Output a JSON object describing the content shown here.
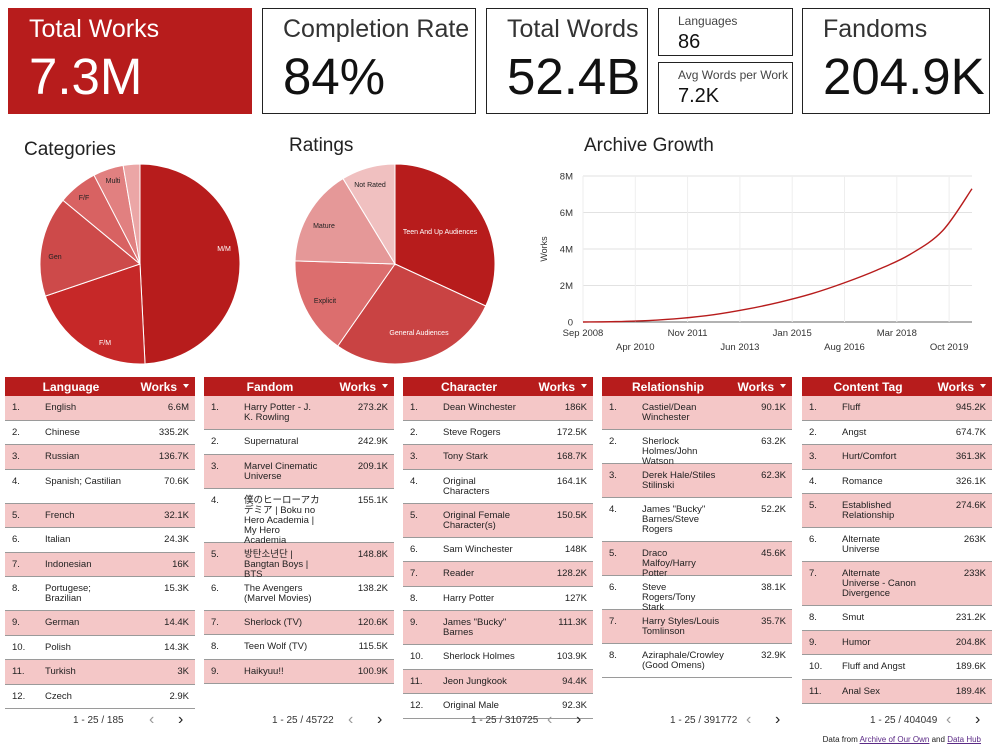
{
  "scorecards": {
    "total_works": {
      "label": "Total Works",
      "value": "7.3M"
    },
    "completion_rate": {
      "label": "Completion Rate",
      "value": "84%"
    },
    "total_words": {
      "label": "Total Words",
      "value": "52.4B"
    },
    "languages": {
      "label": "Languages",
      "value": "86"
    },
    "avg_words": {
      "label": "Avg Words per Work",
      "value": "7.2K"
    },
    "fandoms": {
      "label": "Fandoms",
      "value": "204.9K"
    }
  },
  "colors": {
    "accent": "#b71c1c",
    "row_alt": "#f4c7c7",
    "line": "#b71c1c"
  },
  "chart_data": [
    {
      "type": "pie",
      "title": "Categories",
      "labels": [
        "M/M",
        "F/M",
        "Gen",
        "F/F",
        "Multi",
        ""
      ],
      "values": [
        49.2,
        20.6,
        16.2,
        6.4,
        4.9,
        2.7
      ],
      "colors": [
        "#b71c1c",
        "#c62828",
        "#cd4a4a",
        "#d86262",
        "#e18080",
        "#eba6a6"
      ]
    },
    {
      "type": "pie",
      "title": "Ratings",
      "labels": [
        "Teen And Up Audiences",
        "General Audiences",
        "Explicit",
        "Mature",
        "Not Rated"
      ],
      "values": [
        31.9,
        27.8,
        15.8,
        15.8,
        8.7
      ],
      "colors": [
        "#b71c1c",
        "#c94343",
        "#dc6e6e",
        "#e59898",
        "#f0c0c0"
      ]
    },
    {
      "type": "line",
      "title": "Archive Growth",
      "ylabel": "Works",
      "xlabel": "",
      "x_ticks_upper": [
        "Sep 2008",
        "Nov 2011",
        "Jan 2015",
        "Mar 2018"
      ],
      "x_ticks_lower": [
        "Apr 2010",
        "Jun 2013",
        "Aug 2016",
        "Oct 2019"
      ],
      "y_ticks": [
        "0",
        "2M",
        "4M",
        "6M",
        "8M"
      ],
      "ylim": [
        0,
        8
      ],
      "x_unit": "years since Sep 2008",
      "x": [
        0,
        1,
        2,
        3,
        4,
        5,
        6,
        7,
        8,
        9,
        10,
        11,
        11.9
      ],
      "values": [
        0,
        0.02,
        0.08,
        0.2,
        0.4,
        0.7,
        1.08,
        1.55,
        2.15,
        2.85,
        3.7,
        5.0,
        7.3
      ]
    }
  ],
  "tables": [
    {
      "header": {
        "col1": "Language",
        "col2": "Works"
      },
      "pager": "1 - 25 / 185",
      "rows": [
        {
          "idx": "1.",
          "name": "English",
          "count": "6.6M"
        },
        {
          "idx": "2.",
          "name": "Chinese",
          "count": "335.2K"
        },
        {
          "idx": "3.",
          "name": "Russian",
          "count": "136.7K"
        },
        {
          "idx": "4.",
          "name": "Spanish; Castilian",
          "count": "70.6K"
        },
        {
          "idx": "5.",
          "name": "French",
          "count": "32.1K"
        },
        {
          "idx": "6.",
          "name": "Italian",
          "count": "24.3K"
        },
        {
          "idx": "7.",
          "name": "Indonesian",
          "count": "16K"
        },
        {
          "idx": "8.",
          "name": "Portugese; Brazilian",
          "count": "15.3K"
        },
        {
          "idx": "9.",
          "name": "German",
          "count": "14.4K"
        },
        {
          "idx": "10.",
          "name": "Polish",
          "count": "14.3K"
        },
        {
          "idx": "11.",
          "name": "Turkish",
          "count": "3K"
        },
        {
          "idx": "12.",
          "name": "Czech",
          "count": "2.9K"
        }
      ]
    },
    {
      "header": {
        "col1": "Fandom",
        "col2": "Works"
      },
      "pager": "1 - 25 / 45722",
      "rows": [
        {
          "idx": "1.",
          "name": "Harry Potter - J. K. Rowling",
          "count": "273.2K"
        },
        {
          "idx": "2.",
          "name": "Supernatural",
          "count": "242.9K"
        },
        {
          "idx": "3.",
          "name": "Marvel Cinematic Universe",
          "count": "209.1K"
        },
        {
          "idx": "4.",
          "name": "僕のヒーローアカデミア | Boku no Hero Academia | My Hero Academia",
          "count": "155.1K"
        },
        {
          "idx": "5.",
          "name": "방탄소년단 | Bangtan Boys | BTS",
          "count": "148.8K"
        },
        {
          "idx": "6.",
          "name": "The Avengers (Marvel Movies)",
          "count": "138.2K"
        },
        {
          "idx": "7.",
          "name": "Sherlock (TV)",
          "count": "120.6K"
        },
        {
          "idx": "8.",
          "name": "Teen Wolf (TV)",
          "count": "115.5K"
        },
        {
          "idx": "9.",
          "name": "Haikyuu!!",
          "count": "100.9K"
        }
      ]
    },
    {
      "header": {
        "col1": "Character",
        "col2": "Works"
      },
      "pager": "1 - 25 / 310725",
      "rows": [
        {
          "idx": "1.",
          "name": "Dean Winchester",
          "count": "186K"
        },
        {
          "idx": "2.",
          "name": "Steve Rogers",
          "count": "172.5K"
        },
        {
          "idx": "3.",
          "name": "Tony Stark",
          "count": "168.7K"
        },
        {
          "idx": "4.",
          "name": "Original Characters",
          "count": "164.1K"
        },
        {
          "idx": "5.",
          "name": "Original Female Character(s)",
          "count": "150.5K"
        },
        {
          "idx": "6.",
          "name": "Sam Winchester",
          "count": "148K"
        },
        {
          "idx": "7.",
          "name": "Reader",
          "count": "128.2K"
        },
        {
          "idx": "8.",
          "name": "Harry Potter",
          "count": "127K"
        },
        {
          "idx": "9.",
          "name": "James \"Bucky\" Barnes",
          "count": "111.3K"
        },
        {
          "idx": "10.",
          "name": "Sherlock Holmes",
          "count": "103.9K"
        },
        {
          "idx": "11.",
          "name": "Jeon Jungkook",
          "count": "94.4K"
        },
        {
          "idx": "12.",
          "name": "Original Male",
          "count": "92.3K"
        }
      ]
    },
    {
      "header": {
        "col1": "Relationship",
        "col2": "Works"
      },
      "pager": "1 - 25 / 391772",
      "rows": [
        {
          "idx": "1.",
          "name": "Castiel/Dean Winchester",
          "count": "90.1K"
        },
        {
          "idx": "2.",
          "name": "Sherlock Holmes/John Watson",
          "count": "63.2K"
        },
        {
          "idx": "3.",
          "name": "Derek Hale/Stiles Stilinski",
          "count": "62.3K"
        },
        {
          "idx": "4.",
          "name": "James \"Bucky\" Barnes/Steve Rogers",
          "count": "52.2K"
        },
        {
          "idx": "5.",
          "name": "Draco Malfoy/Harry Potter",
          "count": "45.6K"
        },
        {
          "idx": "6.",
          "name": "Steve Rogers/Tony Stark",
          "count": "38.1K"
        },
        {
          "idx": "7.",
          "name": "Harry Styles/Louis Tomlinson",
          "count": "35.7K"
        },
        {
          "idx": "8.",
          "name": "Aziraphale/Crowley (Good Omens)",
          "count": "32.9K"
        }
      ]
    },
    {
      "header": {
        "col1": "Content Tag",
        "col2": "Works"
      },
      "pager": "1 - 25 / 404049",
      "rows": [
        {
          "idx": "1.",
          "name": "Fluff",
          "count": "945.2K"
        },
        {
          "idx": "2.",
          "name": "Angst",
          "count": "674.7K"
        },
        {
          "idx": "3.",
          "name": "Hurt/Comfort",
          "count": "361.3K"
        },
        {
          "idx": "4.",
          "name": "Romance",
          "count": "326.1K"
        },
        {
          "idx": "5.",
          "name": "Established Relationship",
          "count": "274.6K"
        },
        {
          "idx": "6.",
          "name": "Alternate Universe",
          "count": "263K"
        },
        {
          "idx": "7.",
          "name": "Alternate Universe - Canon Divergence",
          "count": "233K"
        },
        {
          "idx": "8.",
          "name": "Smut",
          "count": "231.2K"
        },
        {
          "idx": "9.",
          "name": "Humor",
          "count": "204.8K"
        },
        {
          "idx": "10.",
          "name": "Fluff and Angst",
          "count": "189.6K"
        },
        {
          "idx": "11.",
          "name": "Anal Sex",
          "count": "189.4K"
        }
      ]
    }
  ],
  "footer": {
    "prefix": "Data from",
    "link1": "Archive of Our Own",
    "mid": "and",
    "link2": "Data Hub"
  }
}
